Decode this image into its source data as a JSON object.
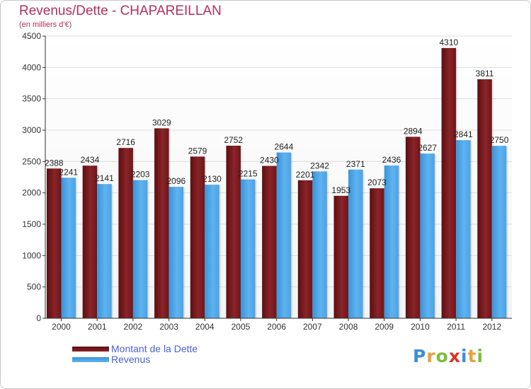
{
  "title": "Revenus/Dette - CHAPAREILLAN",
  "subtitle": "(en milliers d'€)",
  "logo": {
    "letters": [
      "P",
      "r",
      "o",
      "x",
      "i",
      "t",
      "i"
    ],
    "colors": [
      "#3b8fd6",
      "#e8a23a",
      "#7bbf3a",
      "#d9342b",
      "#3b8fd6",
      "#e8a23a",
      "#7bbf3a"
    ]
  },
  "colors": {
    "debt": "#7a1a1e",
    "debt_light": "#a03538",
    "revenue": "#4aa3e6",
    "revenue_light": "#67b7f0",
    "title": "#b03060",
    "legend_text": "#4a5fd6"
  },
  "chart_data": {
    "type": "bar",
    "title": "Revenus/Dette - CHAPAREILLAN",
    "subtitle": "(en milliers d'€)",
    "categories": [
      "2000",
      "2001",
      "2002",
      "2003",
      "2004",
      "2005",
      "2006",
      "2007",
      "2008",
      "2009",
      "2010",
      "2011",
      "2012"
    ],
    "series": [
      {
        "name": "Montant de la Dette",
        "values": [
          2388,
          2434,
          2716,
          3029,
          2579,
          2752,
          2430,
          2201,
          1953,
          2073,
          2894,
          4310,
          3811
        ],
        "labels": [
          "2388",
          "2434",
          "2716",
          "3029",
          "2579",
          "2752",
          "2430",
          "2201",
          "1953",
          "2073",
          "2894",
          "4310",
          "3811"
        ]
      },
      {
        "name": "Revenus",
        "values": [
          2241,
          2141,
          2203,
          2096,
          2130,
          2215,
          2644,
          2342,
          2371,
          2436,
          2627,
          2841,
          2750
        ],
        "labels": [
          "2241",
          "2141",
          "2203",
          "2096",
          "2130",
          "2215",
          "2644",
          "2342",
          "2371",
          "2436",
          "2627",
          "2841",
          "2750"
        ]
      }
    ],
    "yticks": [
      0,
      500,
      1000,
      1500,
      2000,
      2500,
      3000,
      3500,
      4000,
      4500
    ],
    "ylim": [
      0,
      4500
    ],
    "grid": true,
    "legend_position": "bottom-left"
  }
}
